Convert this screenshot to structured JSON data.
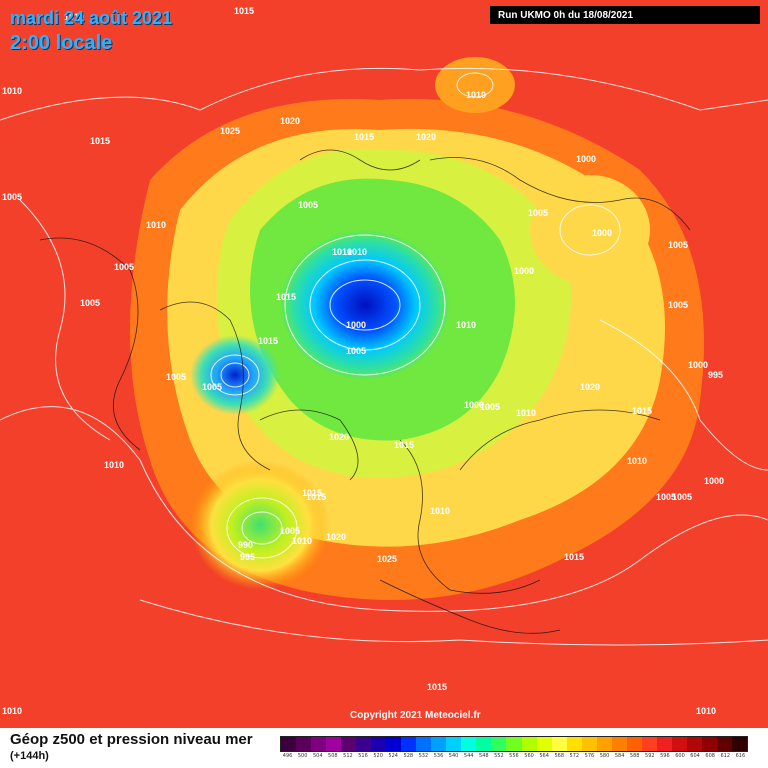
{
  "header": {
    "title_date": "mardi 24 août 2021",
    "title_time": "2:00 locale",
    "run_info": "Run UKMO 0h du 18/08/2021"
  },
  "copyright": "Copyright 2021 Meteociel.fr",
  "footer": {
    "title": "Géop z500 et pression niveau mer",
    "lead": "(+144h)"
  },
  "legend": {
    "ticks": [
      "496",
      "500",
      "504",
      "508",
      "512",
      "516",
      "520",
      "524",
      "528",
      "532",
      "536",
      "540",
      "544",
      "548",
      "552",
      "556",
      "560",
      "564",
      "568",
      "572",
      "576",
      "580",
      "584",
      "588",
      "592",
      "596",
      "600",
      "604",
      "608",
      "612",
      "616"
    ],
    "colors": [
      "#3b003b",
      "#5a005a",
      "#7f007f",
      "#a000a0",
      "#5a0070",
      "#3a0090",
      "#1a00b0",
      "#0000d0",
      "#0030ff",
      "#0070ff",
      "#00a0ff",
      "#00d0ff",
      "#00ffe0",
      "#00ffa0",
      "#30ff60",
      "#70ff20",
      "#b0ff00",
      "#e0ff00",
      "#ffff40",
      "#ffe000",
      "#ffc000",
      "#ffa000",
      "#ff8000",
      "#ff6000",
      "#ff4020",
      "#f02020",
      "#d01010",
      "#b00808",
      "#900000",
      "#600000",
      "#300000"
    ]
  },
  "pressure_labels": [
    "1015",
    "1010",
    "1010",
    "1015",
    "1025",
    "1020",
    "1015",
    "1020",
    "1010",
    "1000",
    "1005",
    "1010",
    "1005",
    "1000",
    "1005",
    "1005",
    "1000",
    "1005",
    "1005",
    "1005",
    "1000",
    "995",
    "1015",
    "1010",
    "1000",
    "1010",
    "1015",
    "1020",
    "1015",
    "1010",
    "1000",
    "1005",
    "1005",
    "1010",
    "1005",
    "1015",
    "1005",
    "1010",
    "1020",
    "1005",
    "1015",
    "1025",
    "1015",
    "990",
    "995",
    "1005",
    "1010",
    "1020",
    "1015",
    "1010",
    "1010",
    "1005",
    "1000",
    "1010",
    "1015",
    "1010"
  ]
}
